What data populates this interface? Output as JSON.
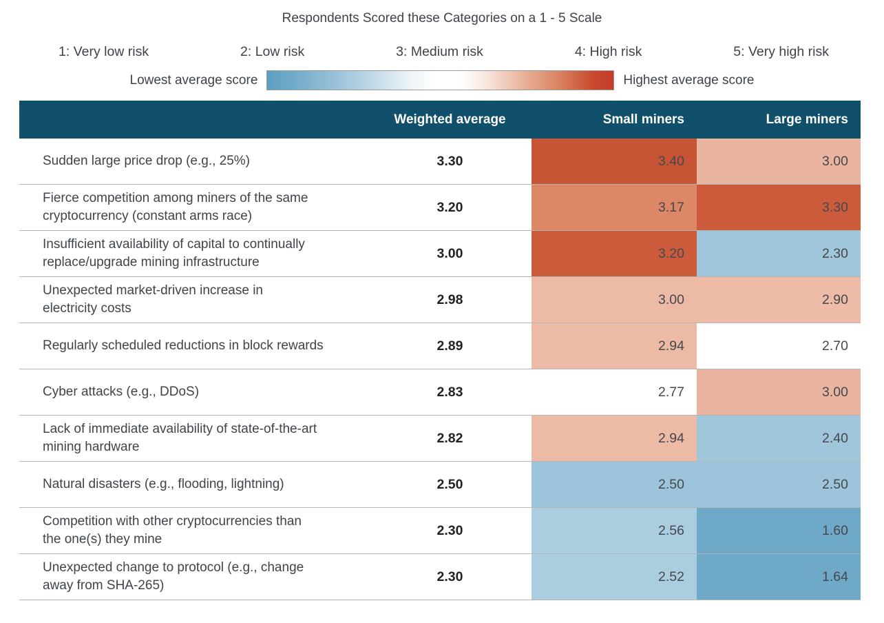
{
  "colors": {
    "header_bg": "#11506B",
    "row_separator": "#B4B5B7",
    "legend_low_end": "#5C9FC3",
    "legend_high_end": "#C43C27",
    "title_text": "#3D4349",
    "value_text": "#45484C"
  },
  "chart_data": {
    "type": "heatmap",
    "title": "Respondents Scored these Categories on a 1 - 5 Scale",
    "value_range": [
      1,
      5
    ],
    "scale_legend": {
      "labels": [
        "1: Very low risk",
        "2: Low risk",
        "3: Medium risk",
        "4: High risk",
        "5: Very high risk"
      ],
      "low_label": "Lowest average score",
      "high_label": "Highest average score"
    },
    "columns": [
      "Weighted average",
      "Small miners",
      "Large miners"
    ],
    "rows": [
      {
        "category": "Sudden large price drop (e.g., 25%)",
        "weighted": "3.30",
        "small": "3.40",
        "large": "3.00",
        "small_color": "#C65435",
        "large_color": "#E9B5A0"
      },
      {
        "category": "Fierce competition among miners of the same\ncryptocurrency (constant arms race)",
        "weighted": "3.20",
        "small": "3.17",
        "large": "3.30",
        "small_color": "#DC8866",
        "large_color": "#CC5B3B"
      },
      {
        "category": "Insufficient availability of capital to continually\nreplace/upgrade mining infrastructure",
        "weighted": "3.00",
        "small": "3.20",
        "large": "2.30",
        "small_color": "#CC5B3B",
        "large_color": "#A0C6DB"
      },
      {
        "category": "Unexpected market-driven increase in\nelectricity costs",
        "weighted": "2.98",
        "small": "3.00",
        "large": "2.90",
        "small_color": "#ECBAA5",
        "large_color": "#EDBBA7"
      },
      {
        "category": "Regularly scheduled reductions in block rewards",
        "weighted": "2.89",
        "small": "2.94",
        "large": "2.70",
        "small_color": "#ECBAA5",
        "large_color": "#FFFFFF"
      },
      {
        "category": "Cyber attacks (e.g., DDoS)",
        "weighted": "2.83",
        "small": "2.77",
        "large": "3.00",
        "small_color": "#FFFFFF",
        "large_color": "#E9B4A0"
      },
      {
        "category": "Lack of immediate availability of state-of-the-art\nmining hardware",
        "weighted": "2.82",
        "small": "2.94",
        "large": "2.40",
        "small_color": "#ECBAA5",
        "large_color": "#A0C6DB"
      },
      {
        "category": "Natural disasters (e.g., flooding, lightning)",
        "weighted": "2.50",
        "small": "2.50",
        "large": "2.50",
        "small_color": "#9DC4DA",
        "large_color": "#9DC4DA"
      },
      {
        "category": "Competition with other cryptocurrencies than\nthe one(s) they mine",
        "weighted": "2.30",
        "small": "2.56",
        "large": "1.60",
        "small_color": "#ABCDE0",
        "large_color": "#6FA9C8"
      },
      {
        "category": "Unexpected change to protocol (e.g., change\naway from SHA-265)",
        "weighted": "2.30",
        "small": "2.52",
        "large": "1.64",
        "small_color": "#ABCDE0",
        "large_color": "#6FA9C8"
      }
    ]
  }
}
